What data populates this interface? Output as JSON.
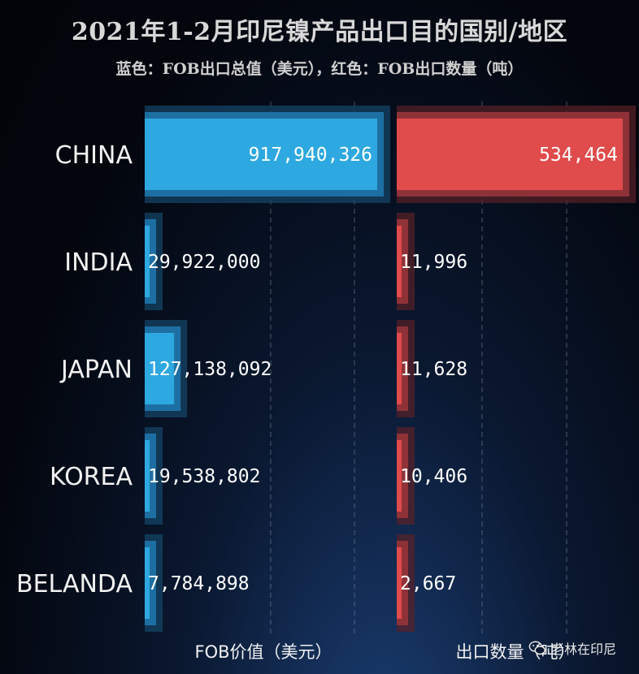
{
  "title": "2021年1-2月印尼镍产品出口目的国别/地区",
  "subtitle": "蓝色：FOB出口总值（美元），红色：FOB出口数量（吨）",
  "watermark": "老林在印尼",
  "colors": {
    "fob_value": "#2ea8e0",
    "fob_quantity": "#e04b4b"
  },
  "chart_data": [
    {
      "type": "bar",
      "orientation": "horizontal",
      "categories": [
        "CHINA",
        "INDIA",
        "JAPAN",
        "KOREA",
        "BELANDA"
      ],
      "values": [
        917940326,
        29922000,
        127138092,
        19538802,
        7784898
      ],
      "value_labels": [
        "917,940,326",
        "29,922,000",
        "127,138,092",
        "19,538,802",
        "7,784,898"
      ],
      "xlabel": "FOB价值（美元）",
      "grid": true
    },
    {
      "type": "bar",
      "orientation": "horizontal",
      "categories": [
        "CHINA",
        "INDIA",
        "JAPAN",
        "KOREA",
        "BELANDA"
      ],
      "values": [
        534464,
        11996,
        11628,
        10406,
        2667
      ],
      "value_labels": [
        "534,464",
        "11,996",
        "11,628",
        "10,406",
        "2,667"
      ],
      "xlabel": "出口数量（吨）",
      "grid": true
    }
  ]
}
